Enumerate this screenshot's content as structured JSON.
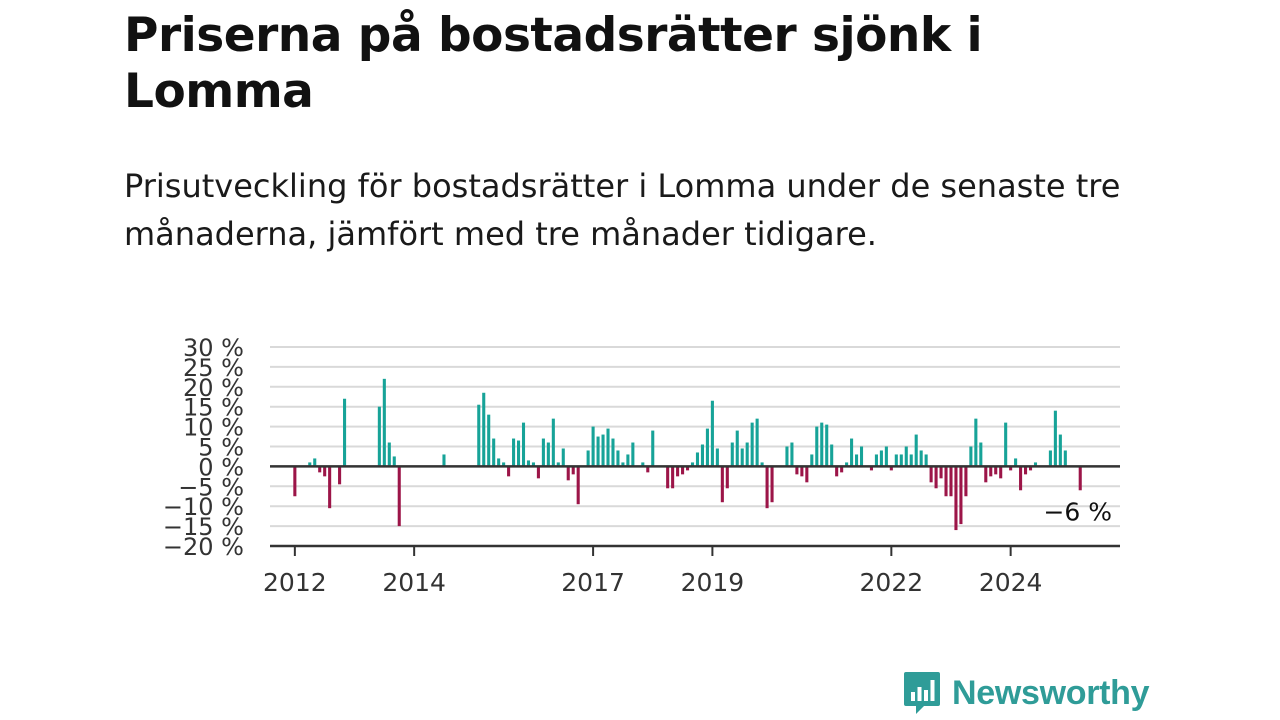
{
  "header": {
    "title": "Priserna på bostadsrätter sjönk i Lomma",
    "subtitle": "Prisutveckling för bostadsrätter i Lomma under de senaste tre månaderna, jämfört med tre månader tidigare."
  },
  "brand": {
    "name": "Newsworthy",
    "color": "#2f9c98",
    "icon": "bar-chart-speech-bubble-icon"
  },
  "colors": {
    "positive": "#17a398",
    "negative": "#9c1548",
    "grid": "#d9d9d9",
    "axis": "#333333",
    "text": "#333333"
  },
  "chart_data": {
    "type": "bar",
    "title": "Priserna på bostadsrätter sjönk i Lomma",
    "subtitle": "Prisutveckling för bostadsrätter i Lomma under de senaste tre månaderna, jämfört med tre månader tidigare.",
    "xlabel": "",
    "ylabel": "",
    "ylim": [
      -20,
      30
    ],
    "yticks": [
      30,
      25,
      20,
      15,
      10,
      5,
      0,
      -5,
      -10,
      -15,
      -20
    ],
    "ytick_labels": [
      "30 %",
      "25 %",
      "20 %",
      "15 %",
      "10 %",
      "5 %",
      "0 %",
      "−5 %",
      "−10 %",
      "−15 %",
      "−20 %"
    ],
    "xlim": [
      "2011-08",
      "2025-11"
    ],
    "xticks": [
      "2012-01",
      "2014-01",
      "2017-01",
      "2019-01",
      "2022-01",
      "2024-01"
    ],
    "xtick_labels": [
      "2012",
      "2014",
      "2017",
      "2019",
      "2022",
      "2024"
    ],
    "grid": true,
    "annotation": {
      "text": "−6 %",
      "x": "2025-03",
      "y": -6
    },
    "points": [
      {
        "x": "2012-01",
        "y": -7.5
      },
      {
        "x": "2012-04",
        "y": 1
      },
      {
        "x": "2012-05",
        "y": 2
      },
      {
        "x": "2012-06",
        "y": -1.5
      },
      {
        "x": "2012-07",
        "y": -2.5
      },
      {
        "x": "2012-08",
        "y": -10.5
      },
      {
        "x": "2012-10",
        "y": -4.5
      },
      {
        "x": "2012-11",
        "y": 17
      },
      {
        "x": "2013-06",
        "y": 15
      },
      {
        "x": "2013-07",
        "y": 22
      },
      {
        "x": "2013-08",
        "y": 6
      },
      {
        "x": "2013-09",
        "y": 2.5
      },
      {
        "x": "2013-10",
        "y": -15
      },
      {
        "x": "2014-07",
        "y": 3
      },
      {
        "x": "2015-02",
        "y": 15.5
      },
      {
        "x": "2015-03",
        "y": 18.5
      },
      {
        "x": "2015-04",
        "y": 13
      },
      {
        "x": "2015-05",
        "y": 7
      },
      {
        "x": "2015-06",
        "y": 2
      },
      {
        "x": "2015-07",
        "y": 1
      },
      {
        "x": "2015-08",
        "y": -2.5
      },
      {
        "x": "2015-09",
        "y": 7
      },
      {
        "x": "2015-10",
        "y": 6.5
      },
      {
        "x": "2015-11",
        "y": 11
      },
      {
        "x": "2015-12",
        "y": 1.5
      },
      {
        "x": "2016-01",
        "y": 1
      },
      {
        "x": "2016-02",
        "y": -3
      },
      {
        "x": "2016-03",
        "y": 7
      },
      {
        "x": "2016-04",
        "y": 6
      },
      {
        "x": "2016-05",
        "y": 12
      },
      {
        "x": "2016-06",
        "y": 1
      },
      {
        "x": "2016-07",
        "y": 4.5
      },
      {
        "x": "2016-08",
        "y": -3.5
      },
      {
        "x": "2016-09",
        "y": -2
      },
      {
        "x": "2016-10",
        "y": -9.5
      },
      {
        "x": "2016-12",
        "y": 4
      },
      {
        "x": "2017-01",
        "y": 10
      },
      {
        "x": "2017-02",
        "y": 7.5
      },
      {
        "x": "2017-03",
        "y": 8
      },
      {
        "x": "2017-04",
        "y": 9.5
      },
      {
        "x": "2017-05",
        "y": 7
      },
      {
        "x": "2017-06",
        "y": 4
      },
      {
        "x": "2017-07",
        "y": 1
      },
      {
        "x": "2017-08",
        "y": 3
      },
      {
        "x": "2017-09",
        "y": 6
      },
      {
        "x": "2017-11",
        "y": 1
      },
      {
        "x": "2017-12",
        "y": -1.5
      },
      {
        "x": "2018-01",
        "y": 9
      },
      {
        "x": "2018-04",
        "y": -5.5
      },
      {
        "x": "2018-05",
        "y": -5.5
      },
      {
        "x": "2018-06",
        "y": -2.5
      },
      {
        "x": "2018-07",
        "y": -2
      },
      {
        "x": "2018-08",
        "y": -1
      },
      {
        "x": "2018-09",
        "y": 1
      },
      {
        "x": "2018-10",
        "y": 3.5
      },
      {
        "x": "2018-11",
        "y": 5.5
      },
      {
        "x": "2018-12",
        "y": 9.5
      },
      {
        "x": "2019-01",
        "y": 16.5
      },
      {
        "x": "2019-02",
        "y": 4.5
      },
      {
        "x": "2019-03",
        "y": -9
      },
      {
        "x": "2019-04",
        "y": -5.5
      },
      {
        "x": "2019-05",
        "y": 6
      },
      {
        "x": "2019-06",
        "y": 9
      },
      {
        "x": "2019-07",
        "y": 4.5
      },
      {
        "x": "2019-08",
        "y": 6
      },
      {
        "x": "2019-09",
        "y": 11
      },
      {
        "x": "2019-10",
        "y": 12
      },
      {
        "x": "2019-11",
        "y": 1
      },
      {
        "x": "2019-12",
        "y": -10.5
      },
      {
        "x": "2020-01",
        "y": -9
      },
      {
        "x": "2020-04",
        "y": 5
      },
      {
        "x": "2020-05",
        "y": 6
      },
      {
        "x": "2020-06",
        "y": -2
      },
      {
        "x": "2020-07",
        "y": -2.5
      },
      {
        "x": "2020-08",
        "y": -4
      },
      {
        "x": "2020-09",
        "y": 3
      },
      {
        "x": "2020-10",
        "y": 10
      },
      {
        "x": "2020-11",
        "y": 11
      },
      {
        "x": "2020-12",
        "y": 10.5
      },
      {
        "x": "2021-01",
        "y": 5.5
      },
      {
        "x": "2021-02",
        "y": -2.5
      },
      {
        "x": "2021-03",
        "y": -1.5
      },
      {
        "x": "2021-04",
        "y": 1
      },
      {
        "x": "2021-05",
        "y": 7
      },
      {
        "x": "2021-06",
        "y": 3
      },
      {
        "x": "2021-07",
        "y": 5
      },
      {
        "x": "2021-09",
        "y": -1
      },
      {
        "x": "2021-10",
        "y": 3
      },
      {
        "x": "2021-11",
        "y": 4
      },
      {
        "x": "2021-12",
        "y": 5
      },
      {
        "x": "2022-01",
        "y": -1
      },
      {
        "x": "2022-02",
        "y": 3
      },
      {
        "x": "2022-03",
        "y": 3
      },
      {
        "x": "2022-04",
        "y": 5
      },
      {
        "x": "2022-05",
        "y": 3
      },
      {
        "x": "2022-06",
        "y": 8
      },
      {
        "x": "2022-07",
        "y": 4
      },
      {
        "x": "2022-08",
        "y": 3
      },
      {
        "x": "2022-09",
        "y": -4
      },
      {
        "x": "2022-10",
        "y": -5.5
      },
      {
        "x": "2022-11",
        "y": -3
      },
      {
        "x": "2022-12",
        "y": -7.5
      },
      {
        "x": "2023-01",
        "y": -7.5
      },
      {
        "x": "2023-02",
        "y": -16
      },
      {
        "x": "2023-03",
        "y": -14.5
      },
      {
        "x": "2023-04",
        "y": -7.5
      },
      {
        "x": "2023-05",
        "y": 5
      },
      {
        "x": "2023-06",
        "y": 12
      },
      {
        "x": "2023-07",
        "y": 6
      },
      {
        "x": "2023-08",
        "y": -4
      },
      {
        "x": "2023-09",
        "y": -2.5
      },
      {
        "x": "2023-10",
        "y": -2
      },
      {
        "x": "2023-11",
        "y": -3
      },
      {
        "x": "2023-12",
        "y": 11
      },
      {
        "x": "2024-01",
        "y": -1
      },
      {
        "x": "2024-02",
        "y": 2
      },
      {
        "x": "2024-03",
        "y": -6
      },
      {
        "x": "2024-04",
        "y": -2
      },
      {
        "x": "2024-05",
        "y": -1
      },
      {
        "x": "2024-06",
        "y": 1
      },
      {
        "x": "2024-09",
        "y": 4
      },
      {
        "x": "2024-10",
        "y": 14
      },
      {
        "x": "2024-11",
        "y": 8
      },
      {
        "x": "2024-12",
        "y": 4
      },
      {
        "x": "2025-03",
        "y": -6
      }
    ]
  }
}
